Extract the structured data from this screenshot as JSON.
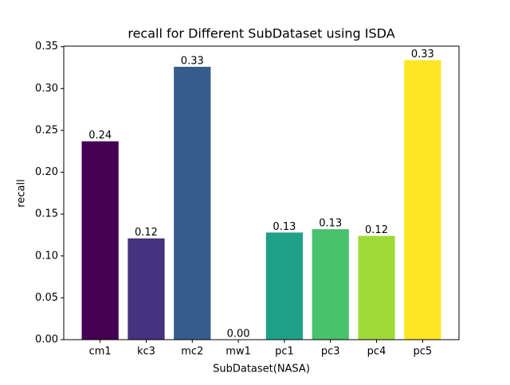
{
  "chart_data": {
    "type": "bar",
    "title": "recall for Different SubDataset using ISDA",
    "x_label": "SubDataset(NASA)",
    "y_label": "recall",
    "categories": [
      "cm1",
      "kc3",
      "mc2",
      "mw1",
      "pc1",
      "pc3",
      "pc4",
      "pc5"
    ],
    "values": [
      0.237,
      0.121,
      0.326,
      0,
      0.128,
      0.132,
      0.124,
      0.334
    ],
    "value_labels": [
      "0.24",
      "0.12",
      "0.33",
      "0.00",
      "0.13",
      "0.13",
      "0.12",
      "0.33"
    ],
    "colors": [
      "#440154",
      "#46327e",
      "#365c8d",
      "#277f8e",
      "#1fa187",
      "#4ac16d",
      "#a0da39",
      "#fde725"
    ],
    "ylim": [
      0,
      0.3507
    ],
    "yticks": [
      {
        "value": 0,
        "label": "0.00"
      },
      {
        "value": 0.05,
        "label": "0.05"
      },
      {
        "value": 0.1,
        "label": "0.10"
      },
      {
        "value": 0.15,
        "label": "0.15"
      },
      {
        "value": 0.2,
        "label": "0.20"
      },
      {
        "value": 0.25,
        "label": "0.25"
      },
      {
        "value": 0.3,
        "label": "0.30"
      },
      {
        "value": 0.35,
        "label": "0.35"
      }
    ]
  }
}
